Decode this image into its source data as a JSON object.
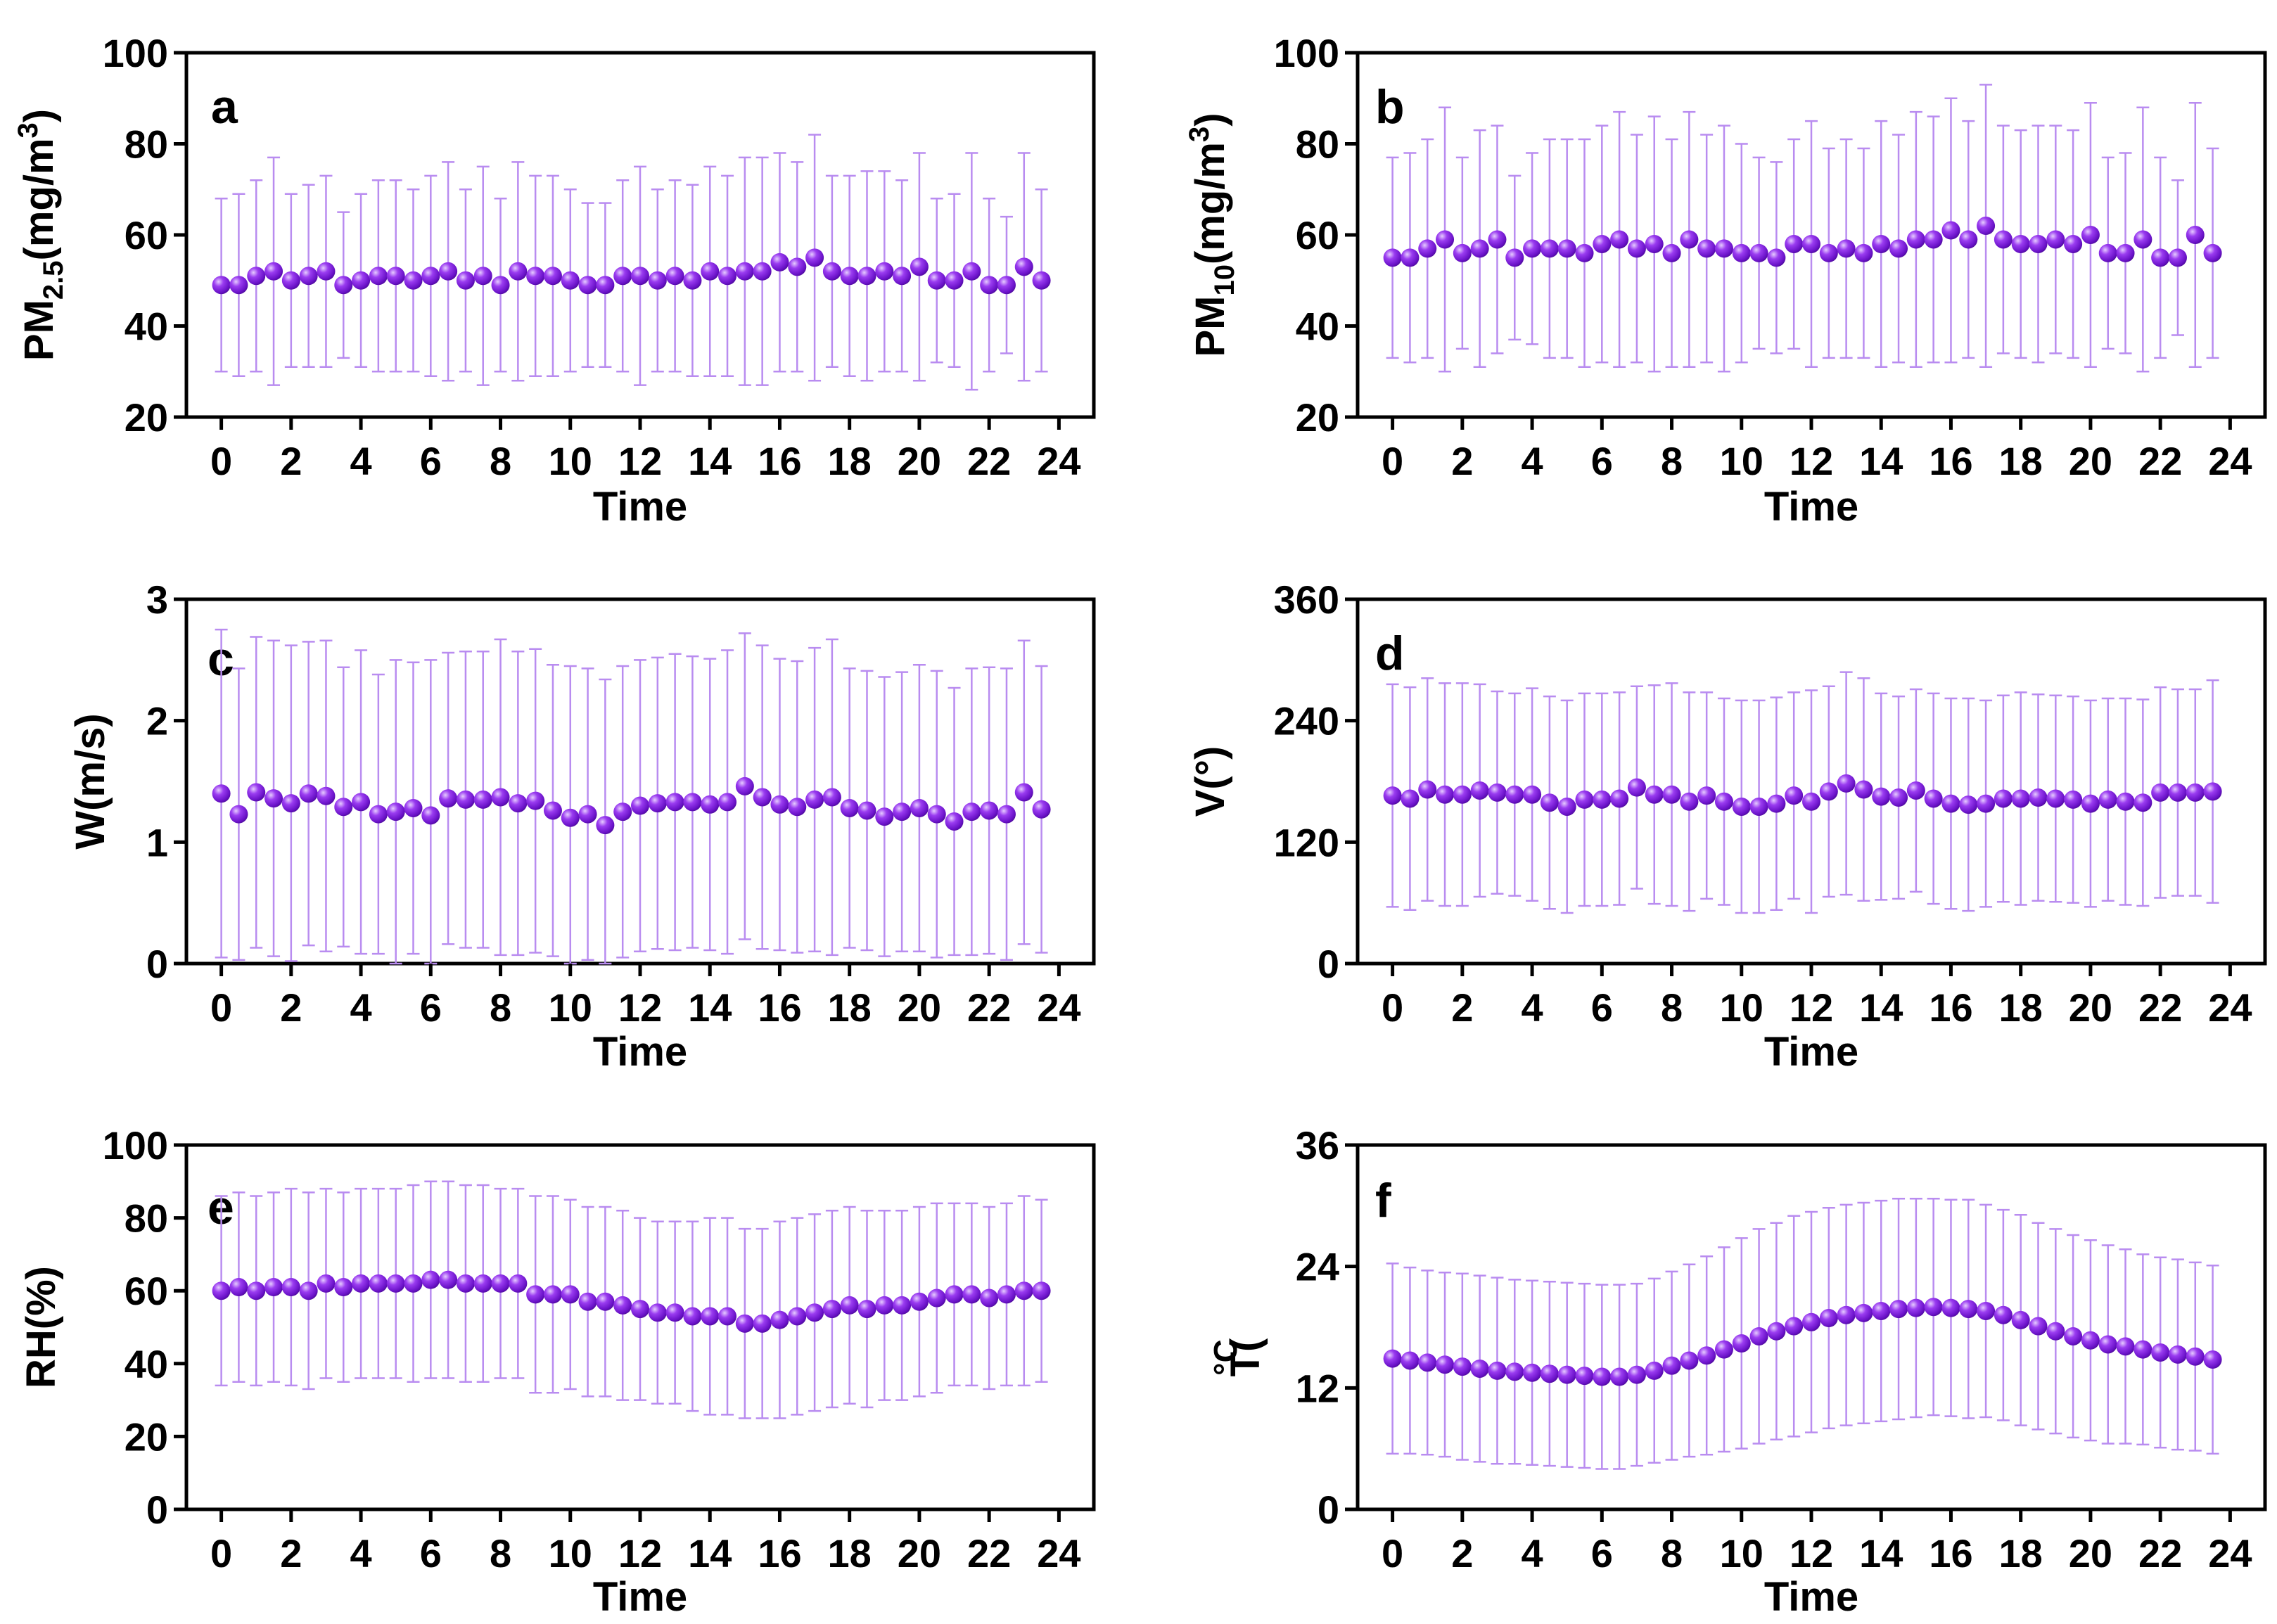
{
  "colors": {
    "marker": "#8a1be8",
    "marker_highlight": "#e6ccff",
    "marker_dark": "#4a0a96",
    "error_bar": "#b98cf0"
  },
  "chart_data": [
    {
      "id": "a",
      "type": "scatter",
      "letter": "a",
      "ylabel": {
        "main": "PM",
        "sub": "2.5",
        "unit_pre": "(mg/m",
        "sup": "3",
        "unit_post": ")"
      },
      "xlabel": "Time",
      "xlim": [
        -1,
        25
      ],
      "ylim": [
        20,
        100
      ],
      "xticks": [
        0,
        2,
        4,
        6,
        8,
        10,
        12,
        14,
        16,
        18,
        20,
        22,
        24
      ],
      "yticks": [
        20,
        40,
        60,
        80,
        100
      ],
      "x": [
        0,
        0.5,
        1,
        1.5,
        2,
        2.5,
        3,
        3.5,
        4,
        4.5,
        5,
        5.5,
        6,
        6.5,
        7,
        7.5,
        8,
        8.5,
        9,
        9.5,
        10,
        10.5,
        11,
        11.5,
        12,
        12.5,
        13,
        13.5,
        14,
        14.5,
        15,
        15.5,
        16,
        16.5,
        17,
        17.5,
        18,
        18.5,
        19,
        19.5,
        20,
        20.5,
        21,
        21.5,
        22,
        22.5,
        23,
        23.5
      ],
      "y": [
        49,
        49,
        51,
        52,
        50,
        51,
        52,
        49,
        50,
        51,
        51,
        50,
        51,
        52,
        50,
        51,
        49,
        52,
        51,
        51,
        50,
        49,
        49,
        51,
        51,
        50,
        51,
        50,
        52,
        51,
        52,
        52,
        54,
        53,
        55,
        52,
        51,
        51,
        52,
        51,
        53,
        50,
        50,
        52,
        49,
        49,
        53,
        50
      ],
      "err": [
        19,
        20,
        21,
        25,
        19,
        20,
        21,
        16,
        19,
        21,
        21,
        20,
        22,
        24,
        20,
        24,
        19,
        24,
        22,
        22,
        20,
        18,
        18,
        21,
        24,
        20,
        21,
        21,
        23,
        22,
        25,
        25,
        24,
        23,
        27,
        21,
        22,
        23,
        22,
        21,
        25,
        18,
        19,
        26,
        19,
        15,
        25,
        20
      ]
    },
    {
      "id": "b",
      "type": "scatter",
      "letter": "b",
      "ylabel": {
        "main": "PM",
        "sub": "10",
        "unit_pre": "(mg/m",
        "sup": "3",
        "unit_post": ")"
      },
      "xlabel": "Time",
      "xlim": [
        -1,
        25
      ],
      "ylim": [
        20,
        100
      ],
      "xticks": [
        0,
        2,
        4,
        6,
        8,
        10,
        12,
        14,
        16,
        18,
        20,
        22,
        24
      ],
      "yticks": [
        20,
        40,
        60,
        80,
        100
      ],
      "x": [
        0,
        0.5,
        1,
        1.5,
        2,
        2.5,
        3,
        3.5,
        4,
        4.5,
        5,
        5.5,
        6,
        6.5,
        7,
        7.5,
        8,
        8.5,
        9,
        9.5,
        10,
        10.5,
        11,
        11.5,
        12,
        12.5,
        13,
        13.5,
        14,
        14.5,
        15,
        15.5,
        16,
        16.5,
        17,
        17.5,
        18,
        18.5,
        19,
        19.5,
        20,
        20.5,
        21,
        21.5,
        22,
        22.5,
        23,
        23.5
      ],
      "y": [
        55,
        55,
        57,
        59,
        56,
        57,
        59,
        55,
        57,
        57,
        57,
        56,
        58,
        59,
        57,
        58,
        56,
        59,
        57,
        57,
        56,
        56,
        55,
        58,
        58,
        56,
        57,
        56,
        58,
        57,
        59,
        59,
        61,
        59,
        62,
        59,
        58,
        58,
        59,
        58,
        60,
        56,
        56,
        59,
        55,
        55,
        60,
        56
      ],
      "err": [
        22,
        23,
        24,
        29,
        21,
        26,
        25,
        18,
        21,
        24,
        24,
        25,
        26,
        28,
        25,
        28,
        25,
        28,
        25,
        27,
        24,
        21,
        21,
        23,
        27,
        23,
        24,
        23,
        27,
        25,
        28,
        27,
        29,
        26,
        31,
        25,
        25,
        26,
        25,
        25,
        29,
        21,
        22,
        29,
        22,
        17,
        29,
        23
      ]
    },
    {
      "id": "c",
      "type": "scatter",
      "letter": "c",
      "ylabel": {
        "main": "W(m/s)"
      },
      "xlabel": "Time",
      "xlim": [
        -1,
        25
      ],
      "ylim": [
        0,
        3
      ],
      "xticks": [
        0,
        2,
        4,
        6,
        8,
        10,
        12,
        14,
        16,
        18,
        20,
        22,
        24
      ],
      "yticks": [
        0,
        1,
        2,
        3
      ],
      "x": [
        0,
        0.5,
        1,
        1.5,
        2,
        2.5,
        3,
        3.5,
        4,
        4.5,
        5,
        5.5,
        6,
        6.5,
        7,
        7.5,
        8,
        8.5,
        9,
        9.5,
        10,
        10.5,
        11,
        11.5,
        12,
        12.5,
        13,
        13.5,
        14,
        14.5,
        15,
        15.5,
        16,
        16.5,
        17,
        17.5,
        18,
        18.5,
        19,
        19.5,
        20,
        20.5,
        21,
        21.5,
        22,
        22.5,
        23,
        23.5
      ],
      "y": [
        1.4,
        1.23,
        1.41,
        1.36,
        1.32,
        1.4,
        1.38,
        1.29,
        1.33,
        1.23,
        1.25,
        1.28,
        1.22,
        1.36,
        1.35,
        1.35,
        1.37,
        1.32,
        1.34,
        1.26,
        1.2,
        1.23,
        1.14,
        1.25,
        1.3,
        1.32,
        1.33,
        1.33,
        1.31,
        1.33,
        1.46,
        1.37,
        1.31,
        1.29,
        1.35,
        1.37,
        1.28,
        1.26,
        1.21,
        1.25,
        1.28,
        1.23,
        1.17,
        1.25,
        1.26,
        1.23,
        1.41,
        1.27
      ],
      "err": [
        1.35,
        1.2,
        1.28,
        1.3,
        1.3,
        1.25,
        1.28,
        1.15,
        1.25,
        1.15,
        1.25,
        1.2,
        1.28,
        1.2,
        1.22,
        1.22,
        1.3,
        1.25,
        1.25,
        1.2,
        1.25,
        1.2,
        1.2,
        1.2,
        1.2,
        1.2,
        1.22,
        1.2,
        1.2,
        1.25,
        1.26,
        1.25,
        1.2,
        1.2,
        1.25,
        1.3,
        1.15,
        1.15,
        1.15,
        1.15,
        1.18,
        1.18,
        1.1,
        1.18,
        1.18,
        1.2,
        1.25,
        1.18
      ]
    },
    {
      "id": "d",
      "type": "scatter",
      "letter": "d",
      "ylabel": {
        "main": "V(°)"
      },
      "xlabel": "Time",
      "xlim": [
        -1,
        25
      ],
      "ylim": [
        0,
        360
      ],
      "xticks": [
        0,
        2,
        4,
        6,
        8,
        10,
        12,
        14,
        16,
        18,
        20,
        22,
        24
      ],
      "yticks": [
        0,
        120,
        240,
        360
      ],
      "x": [
        0,
        0.5,
        1,
        1.5,
        2,
        2.5,
        3,
        3.5,
        4,
        4.5,
        5,
        5.5,
        6,
        6.5,
        7,
        7.5,
        8,
        8.5,
        9,
        9.5,
        10,
        10.5,
        11,
        11.5,
        12,
        12.5,
        13,
        13.5,
        14,
        14.5,
        15,
        15.5,
        16,
        16.5,
        17,
        17.5,
        18,
        18.5,
        19,
        19.5,
        20,
        20.5,
        21,
        21.5,
        22,
        22.5,
        23,
        23.5
      ],
      "y": [
        166,
        163,
        172,
        167,
        167,
        171,
        169,
        167,
        167,
        159,
        155,
        162,
        162,
        163,
        174,
        167,
        167,
        160,
        166,
        160,
        155,
        155,
        158,
        166,
        160,
        170,
        178,
        172,
        165,
        164,
        171,
        163,
        158,
        157,
        158,
        163,
        163,
        164,
        163,
        162,
        158,
        162,
        160,
        159,
        169,
        169,
        169,
        170
      ],
      "err": [
        110,
        110,
        110,
        110,
        110,
        105,
        100,
        100,
        105,
        105,
        105,
        105,
        105,
        105,
        100,
        108,
        110,
        108,
        102,
        102,
        105,
        105,
        105,
        102,
        110,
        104,
        110,
        110,
        102,
        100,
        100,
        104,
        104,
        105,
        102,
        102,
        105,
        102,
        102,
        102,
        102,
        100,
        102,
        102,
        104,
        102,
        102,
        110
      ]
    },
    {
      "id": "e",
      "type": "scatter",
      "letter": "e",
      "ylabel": {
        "main": "RH(%)"
      },
      "xlabel": "Time",
      "xlim": [
        -1,
        25
      ],
      "ylim": [
        0,
        100
      ],
      "xticks": [
        0,
        2,
        4,
        6,
        8,
        10,
        12,
        14,
        16,
        18,
        20,
        22,
        24
      ],
      "yticks": [
        0,
        20,
        40,
        60,
        80,
        100
      ],
      "x": [
        0,
        0.5,
        1,
        1.5,
        2,
        2.5,
        3,
        3.5,
        4,
        4.5,
        5,
        5.5,
        6,
        6.5,
        7,
        7.5,
        8,
        8.5,
        9,
        9.5,
        10,
        10.5,
        11,
        11.5,
        12,
        12.5,
        13,
        13.5,
        14,
        14.5,
        15,
        15.5,
        16,
        16.5,
        17,
        17.5,
        18,
        18.5,
        19,
        19.5,
        20,
        20.5,
        21,
        21.5,
        22,
        22.5,
        23,
        23.5
      ],
      "y": [
        60,
        61,
        60,
        61,
        61,
        60,
        62,
        61,
        62,
        62,
        62,
        62,
        63,
        63,
        62,
        62,
        62,
        62,
        59,
        59,
        59,
        57,
        57,
        56,
        55,
        54,
        54,
        53,
        53,
        53,
        51,
        51,
        52,
        53,
        54,
        55,
        56,
        55,
        56,
        56,
        57,
        58,
        59,
        59,
        58,
        59,
        60,
        60
      ],
      "err": [
        26,
        26,
        26,
        26,
        27,
        27,
        26,
        26,
        26,
        26,
        26,
        27,
        27,
        27,
        27,
        27,
        26,
        26,
        27,
        27,
        26,
        26,
        26,
        26,
        25,
        25,
        25,
        26,
        27,
        27,
        26,
        26,
        27,
        27,
        27,
        27,
        27,
        27,
        26,
        26,
        26,
        26,
        25,
        25,
        25,
        25,
        26,
        25
      ]
    },
    {
      "id": "f",
      "type": "scatter",
      "letter": "f",
      "ylabel": {
        "main": "T(",
        "unit": "°C"
      },
      "xlabel": "Time",
      "xlim": [
        -1,
        25
      ],
      "ylim": [
        0,
        36
      ],
      "xticks": [
        0,
        2,
        4,
        6,
        8,
        10,
        12,
        14,
        16,
        18,
        20,
        22,
        24
      ],
      "yticks": [
        0,
        12,
        24,
        36
      ],
      "x": [
        0,
        0.5,
        1,
        1.5,
        2,
        2.5,
        3,
        3.5,
        4,
        4.5,
        5,
        5.5,
        6,
        6.5,
        7,
        7.5,
        8,
        8.5,
        9,
        9.5,
        10,
        10.5,
        11,
        11.5,
        12,
        12.5,
        13,
        13.5,
        14,
        14.5,
        15,
        15.5,
        16,
        16.5,
        17,
        17.5,
        18,
        18.5,
        19,
        19.5,
        20,
        20.5,
        21,
        21.5,
        22,
        22.5,
        23,
        23.5
      ],
      "y": [
        14.9,
        14.7,
        14.5,
        14.3,
        14.1,
        13.9,
        13.7,
        13.6,
        13.5,
        13.4,
        13.3,
        13.2,
        13.1,
        13.1,
        13.3,
        13.7,
        14.2,
        14.7,
        15.2,
        15.8,
        16.4,
        17.1,
        17.6,
        18.1,
        18.5,
        18.9,
        19.2,
        19.4,
        19.6,
        19.8,
        19.9,
        20.0,
        19.9,
        19.8,
        19.6,
        19.2,
        18.7,
        18.1,
        17.6,
        17.1,
        16.7,
        16.3,
        16.1,
        15.8,
        15.5,
        15.3,
        15.1,
        14.8
      ],
      "err": [
        9.4,
        9.2,
        9.1,
        9.1,
        9.2,
        9.2,
        9.2,
        9.1,
        9.1,
        9.1,
        9.1,
        9.1,
        9.1,
        9.1,
        9.0,
        9.1,
        9.3,
        9.5,
        9.8,
        10.1,
        10.4,
        10.6,
        10.7,
        10.9,
        10.9,
        10.9,
        10.9,
        10.9,
        10.9,
        10.9,
        10.8,
        10.7,
        10.7,
        10.8,
        10.5,
        10.4,
        10.4,
        10.2,
        10.1,
        10.0,
        9.9,
        9.8,
        9.6,
        9.4,
        9.4,
        9.4,
        9.3,
        9.3
      ]
    }
  ]
}
